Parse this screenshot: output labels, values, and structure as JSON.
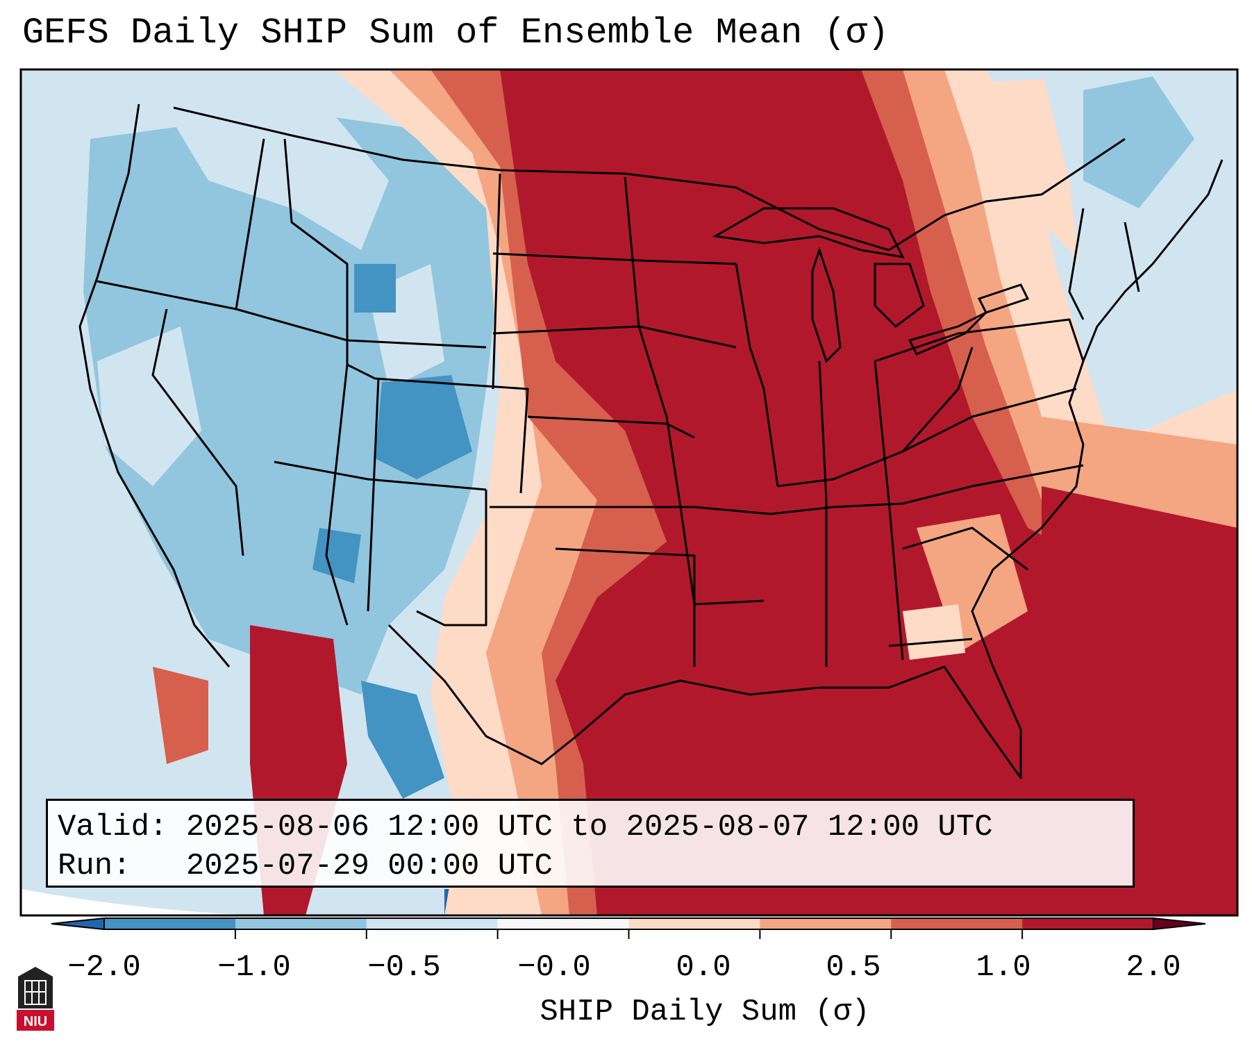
{
  "title": "GEFS Daily SHIP Sum of Ensemble Mean (σ)",
  "info": {
    "valid_label": "Valid:",
    "valid_value": "2025-08-06 12:00 UTC to 2025-08-07 12:00 UTC",
    "run_label": "Run:",
    "run_value": "2025-07-29 00:00 UTC"
  },
  "colorbar": {
    "label": "SHIP Daily Sum (σ)",
    "ticks": [
      "−2.0",
      "−1.0",
      "−0.5",
      "−0.0",
      "0.0",
      "0.5",
      "1.0",
      "2.0"
    ],
    "colors": [
      "#4393c3",
      "#92c5de",
      "#d1e5f0",
      "#f7f7f7",
      "#fddbc7",
      "#f4a582",
      "#d6604d",
      "#b2182b"
    ],
    "extend": "both"
  },
  "logo": {
    "text": "NIU"
  }
}
